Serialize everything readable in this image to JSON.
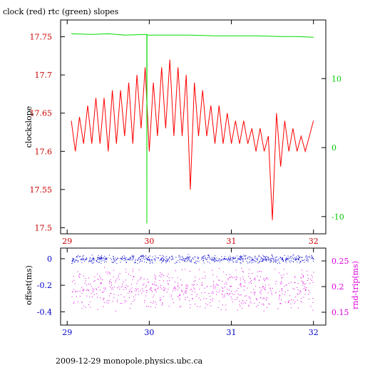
{
  "chart_data": [
    {
      "type": "line",
      "title": "clock (red) rtc (green) slopes",
      "ylabel": "clockslope",
      "xlim": [
        28.92,
        32.15
      ],
      "ylim": [
        17.492,
        17.772
      ],
      "y2lim": [
        -12.5,
        18.5
      ],
      "x_ticks": [
        "29",
        "30",
        "31",
        "32"
      ],
      "y_ticks": [
        "17.5",
        "17.55",
        "17.6",
        "17.65",
        "17.7",
        "17.75"
      ],
      "y2_ticks": [
        "-10",
        "0",
        "10"
      ],
      "colors": {
        "clock": "#ff0000",
        "rtc": "#00dd00",
        "axes": "#000000",
        "left_ticks": "#cc0000",
        "right_ticks": "#00cc00",
        "x_ticks": "#cc0000"
      },
      "series": [
        {
          "name": "clock",
          "axis": "left",
          "x": [
            29.05,
            29.1,
            29.15,
            29.2,
            29.25,
            29.3,
            29.35,
            29.4,
            29.45,
            29.5,
            29.55,
            29.6,
            29.65,
            29.7,
            29.75,
            29.8,
            29.85,
            29.9,
            29.95,
            30.0,
            30.05,
            30.1,
            30.15,
            30.2,
            30.25,
            30.3,
            30.35,
            30.4,
            30.45,
            30.5,
            30.55,
            30.6,
            30.65,
            30.7,
            30.75,
            30.8,
            30.85,
            30.9,
            30.95,
            31.0,
            31.05,
            31.1,
            31.15,
            31.2,
            31.25,
            31.3,
            31.35,
            31.4,
            31.45,
            31.5,
            31.55,
            31.6,
            31.65,
            31.7,
            31.75,
            31.8,
            31.85,
            31.9,
            31.95,
            32.0
          ],
          "y": [
            17.64,
            17.6,
            17.645,
            17.61,
            17.66,
            17.61,
            17.67,
            17.61,
            17.67,
            17.6,
            17.68,
            17.61,
            17.68,
            17.62,
            17.69,
            17.61,
            17.7,
            17.63,
            17.71,
            17.6,
            17.69,
            17.62,
            17.71,
            17.63,
            17.72,
            17.62,
            17.71,
            17.62,
            17.7,
            17.55,
            17.69,
            17.62,
            17.68,
            17.62,
            17.66,
            17.61,
            17.66,
            17.61,
            17.65,
            17.61,
            17.64,
            17.61,
            17.64,
            17.61,
            17.63,
            17.6,
            17.63,
            17.6,
            17.62,
            17.51,
            17.65,
            17.58,
            17.64,
            17.6,
            17.63,
            17.6,
            17.62,
            17.6,
            17.62,
            17.64
          ]
        },
        {
          "name": "rtc",
          "axis": "right",
          "x": [
            29.05,
            29.3,
            29.5,
            29.7,
            29.97,
            29.971,
            29.972,
            30.2,
            30.5,
            30.8,
            31.0,
            31.3,
            31.6,
            31.8,
            32.0
          ],
          "y": [
            16.5,
            16.4,
            16.5,
            16.3,
            16.4,
            -11.0,
            16.3,
            16.3,
            16.3,
            16.2,
            16.2,
            16.2,
            16.1,
            16.1,
            16.0
          ]
        }
      ]
    },
    {
      "type": "scatter",
      "ylabel": "offset(ms)",
      "y2label": "rnd-trip(ms)",
      "xlim": [
        28.92,
        32.15
      ],
      "ylim": [
        -0.5,
        0.08
      ],
      "y2lim": [
        0.125,
        0.275
      ],
      "x_ticks": [
        "29",
        "30",
        "31",
        "32"
      ],
      "y_ticks": [
        "0",
        "-0.2",
        "-0.4"
      ],
      "y2_ticks": [
        "0.25",
        "0.2",
        "0.15"
      ],
      "colors": {
        "offset": "#0000cc",
        "rnd_trip": "#dd00dd",
        "axes": "#000000",
        "left_ticks": "#0000cc",
        "right_ticks": "#dd00dd",
        "x_ticks": "#0000cc"
      },
      "series": [
        {
          "name": "offset",
          "axis": "left",
          "x_range": [
            29.05,
            32.0
          ],
          "center": 0.0,
          "spread": 0.02
        },
        {
          "name": "rnd-trip",
          "axis": "right",
          "x_range": [
            29.05,
            32.0
          ],
          "center": 0.195,
          "spread": 0.025
        }
      ]
    }
  ],
  "footer": "2009-12-29  monopole.physics.ubc.ca"
}
